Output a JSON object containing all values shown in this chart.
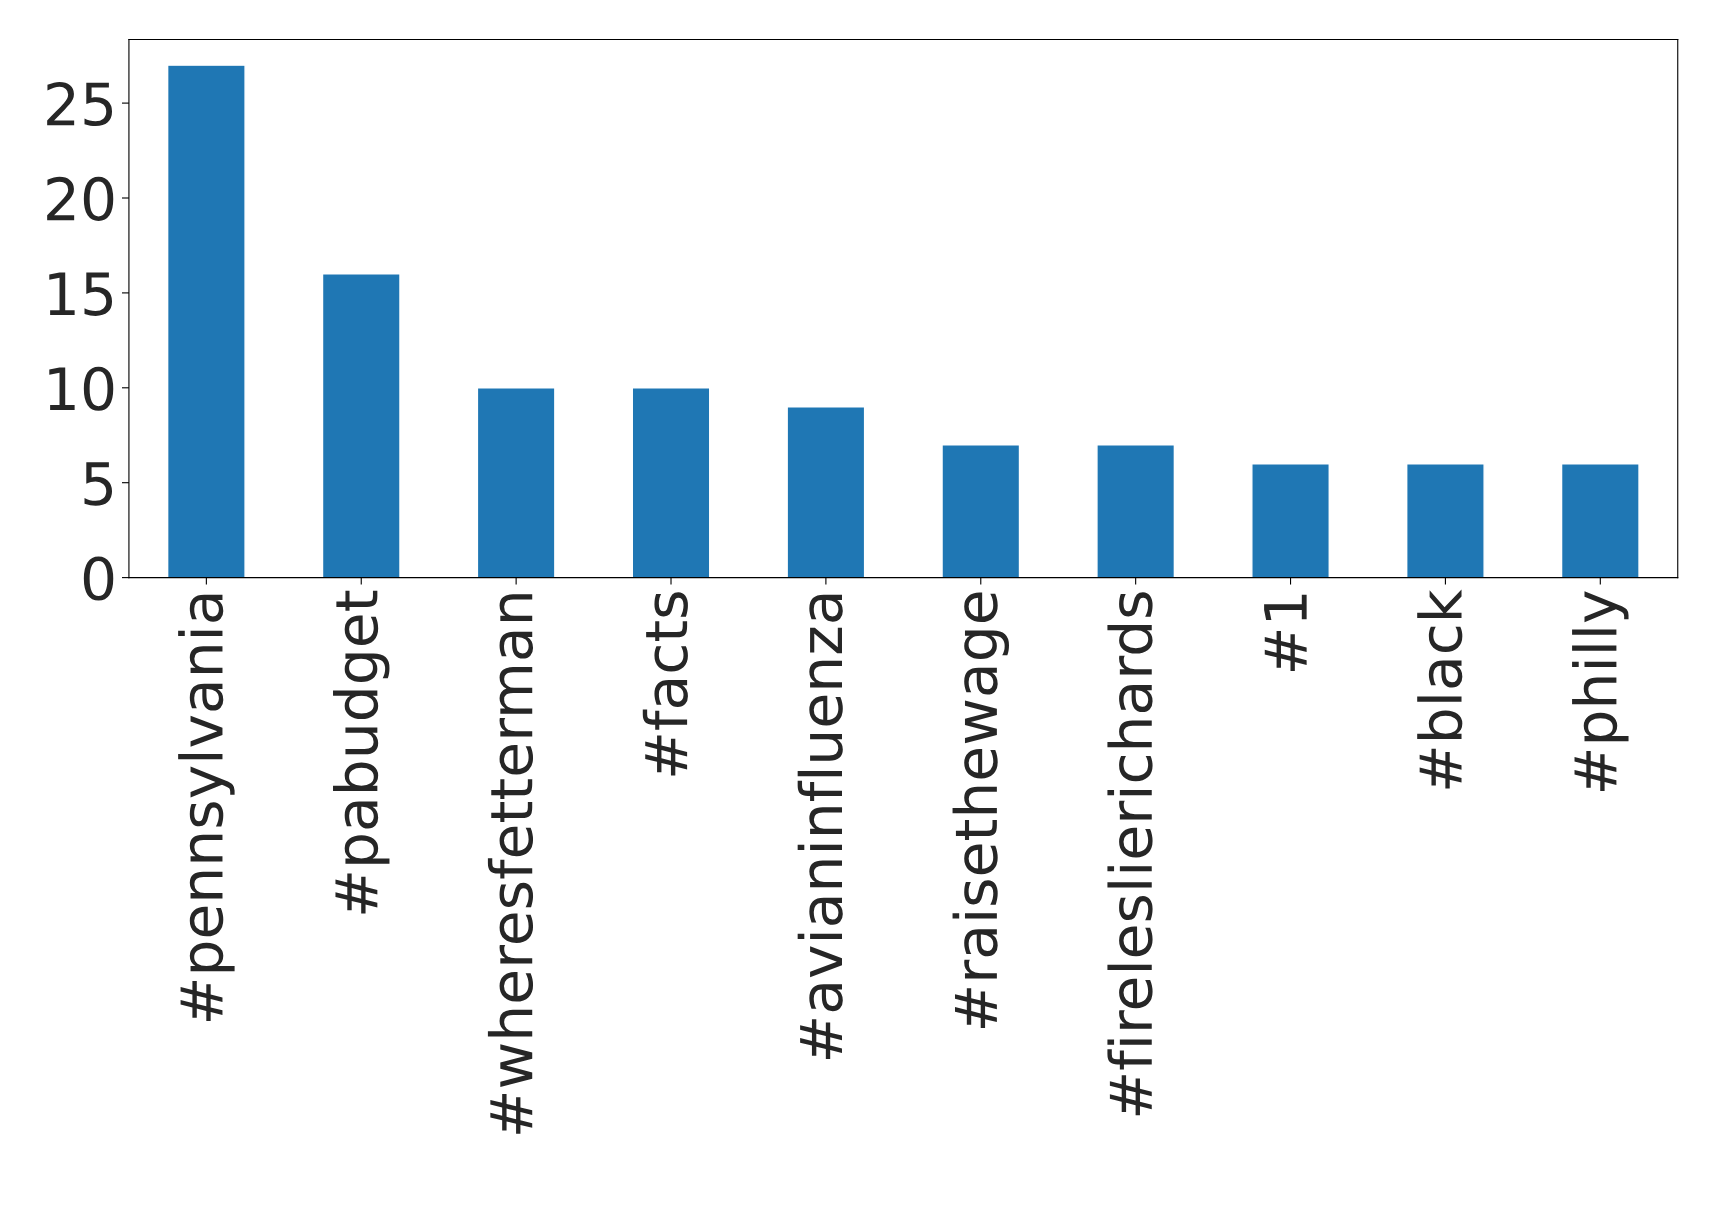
{
  "chart_data": {
    "type": "bar",
    "categories": [
      "#pennsylvania",
      "#pabudget",
      "#wheresfetterman",
      "#facts",
      "#avianinfluenza",
      "#raisethewage",
      "#fireleslierichards",
      "#1",
      "#black",
      "#philly"
    ],
    "values": [
      27,
      16,
      10,
      10,
      9,
      7,
      7,
      6,
      6,
      6
    ],
    "color": "#1f77b4",
    "ylim": [
      0,
      28.35
    ],
    "yticks": [
      0,
      5,
      10,
      15,
      20,
      25
    ],
    "grid": false,
    "legend": false
  }
}
